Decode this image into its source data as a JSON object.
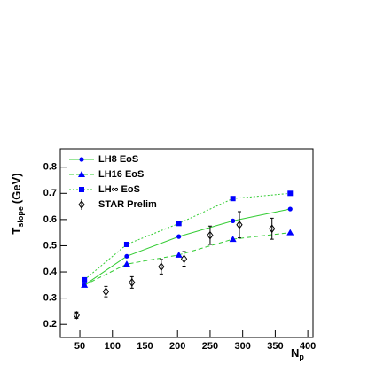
{
  "chart_data": {
    "type": "scatter",
    "y_label": {
      "main": "T",
      "sub": "slope",
      "unit": "(GeV)"
    },
    "x_label": {
      "main": "N",
      "sub": "p"
    },
    "xlim": [
      20,
      408
    ],
    "ylim": [
      0.15,
      0.87
    ],
    "xticks": [
      50,
      100,
      150,
      200,
      250,
      300,
      350,
      400
    ],
    "yticks": [
      0.2,
      0.3,
      0.4,
      0.5,
      0.6,
      0.7,
      0.8
    ],
    "legend": "top-left",
    "series": [
      {
        "name": "LH8 EoS",
        "marker": "circle",
        "color": "#0000ff",
        "line_color": "#33cc33",
        "line_style": "solid",
        "x": [
          57,
          122,
          202,
          285,
          373
        ],
        "values": [
          0.35,
          0.46,
          0.535,
          0.595,
          0.64
        ]
      },
      {
        "name": "LH16 EoS",
        "marker": "triangle",
        "color": "#0000ff",
        "line_color": "#33cc33",
        "line_style": "dashed",
        "x": [
          57,
          122,
          202,
          285,
          373
        ],
        "values": [
          0.35,
          0.43,
          0.465,
          0.525,
          0.55
        ]
      },
      {
        "name": "LH∞ EoS",
        "marker": "square",
        "color": "#0000ff",
        "line_color": "#33cc33",
        "line_style": "dotted",
        "x": [
          57,
          122,
          202,
          285,
          373
        ],
        "values": [
          0.37,
          0.505,
          0.585,
          0.68,
          0.7
        ]
      },
      {
        "name": "STAR Prelim",
        "marker": "open-diamond",
        "color": "#000000",
        "x": [
          45,
          90,
          130,
          175,
          210,
          250,
          295,
          345
        ],
        "values": [
          0.235,
          0.325,
          0.36,
          0.42,
          0.45,
          0.54,
          0.58,
          0.565
        ],
        "errors": [
          0.012,
          0.02,
          0.022,
          0.028,
          0.028,
          0.035,
          0.05,
          0.04
        ]
      }
    ]
  }
}
